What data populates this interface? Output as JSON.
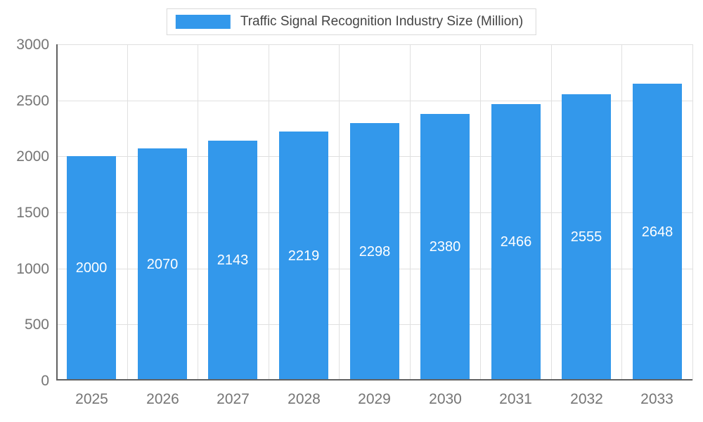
{
  "chart_data": {
    "type": "bar",
    "title": "Traffic Signal Recognition Industry Size (Million)",
    "categories": [
      "2025",
      "2026",
      "2027",
      "2028",
      "2029",
      "2030",
      "2031",
      "2032",
      "2033"
    ],
    "values": [
      2000,
      2070,
      2143,
      2219,
      2298,
      2380,
      2466,
      2555,
      2648
    ],
    "xlabel": "",
    "ylabel": "",
    "ylim": [
      0,
      3000
    ],
    "yticks": [
      0,
      500,
      1000,
      1500,
      2000,
      2500,
      3000
    ],
    "grid": "on",
    "legend_position": "top-center",
    "bar_color": "#3398EB",
    "label_color": "#ffffff"
  }
}
